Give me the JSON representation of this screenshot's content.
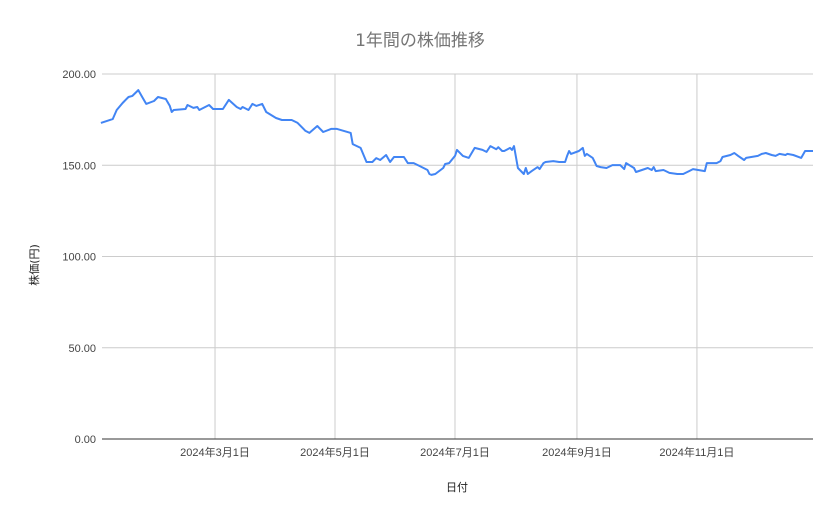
{
  "chart_data": {
    "type": "line",
    "title": "1年間の株価推移",
    "xlabel": "日付",
    "ylabel": "株価(円)",
    "ylim": [
      0,
      200
    ],
    "xlim": [
      "2024-01-01",
      "2024-12-31"
    ],
    "grid": true,
    "legend": "none",
    "line_color": "#4285f4",
    "y_ticks": [
      "0.00",
      "50.00",
      "100.00",
      "150.00",
      "200.00"
    ],
    "y_tick_values": [
      0,
      50,
      100,
      150,
      200
    ],
    "x_ticks": [
      {
        "date": "2024-03-01",
        "label": "2024年3月1日"
      },
      {
        "date": "2024-05-01",
        "label": "2024年5月1日"
      },
      {
        "date": "2024-07-01",
        "label": "2024年7月1日"
      },
      {
        "date": "2024-09-01",
        "label": "2024年9月1日"
      },
      {
        "date": "2024-11-01",
        "label": "2024年11月1日"
      }
    ],
    "series": [
      {
        "x": [
          "2024-01-03",
          "2024-01-09",
          "2024-01-11",
          "2024-01-14",
          "2024-01-17",
          "2024-01-19",
          "2024-01-22",
          "2024-01-24",
          "2024-01-26",
          "2024-01-30",
          "2024-02-01",
          "2024-02-05",
          "2024-02-07",
          "2024-02-08",
          "2024-02-09",
          "2024-02-15",
          "2024-02-16",
          "2024-02-19",
          "2024-02-21",
          "2024-02-22",
          "2024-02-27",
          "2024-02-29",
          "2024-03-05",
          "2024-03-08",
          "2024-03-12",
          "2024-03-14",
          "2024-03-15",
          "2024-03-18",
          "2024-03-20",
          "2024-03-22",
          "2024-03-25",
          "2024-03-27",
          "2024-04-01",
          "2024-04-04",
          "2024-04-09",
          "2024-04-12",
          "2024-04-16",
          "2024-04-18",
          "2024-04-22",
          "2024-04-25",
          "2024-04-29",
          "2024-05-02",
          "2024-05-09",
          "2024-05-10",
          "2024-05-14",
          "2024-05-17",
          "2024-05-20",
          "2024-05-22",
          "2024-05-24",
          "2024-05-27",
          "2024-05-29",
          "2024-05-31",
          "2024-06-05",
          "2024-06-07",
          "2024-06-10",
          "2024-06-13",
          "2024-06-17",
          "2024-06-18",
          "2024-06-19",
          "2024-06-21",
          "2024-06-25",
          "2024-06-26",
          "2024-06-28",
          "2024-07-01",
          "2024-07-02",
          "2024-07-05",
          "2024-07-08",
          "2024-07-11",
          "2024-07-15",
          "2024-07-17",
          "2024-07-19",
          "2024-07-22",
          "2024-07-23",
          "2024-07-25",
          "2024-07-26",
          "2024-07-29",
          "2024-07-30",
          "2024-07-31",
          "2024-08-02",
          "2024-08-05",
          "2024-08-06",
          "2024-08-07",
          "2024-08-09",
          "2024-08-12",
          "2024-08-13",
          "2024-08-15",
          "2024-08-16",
          "2024-08-20",
          "2024-08-23",
          "2024-08-26",
          "2024-08-27",
          "2024-08-28",
          "2024-08-29",
          "2024-09-02",
          "2024-09-04",
          "2024-09-05",
          "2024-09-06",
          "2024-09-09",
          "2024-09-10",
          "2024-09-11",
          "2024-09-13",
          "2024-09-16",
          "2024-09-19",
          "2024-09-23",
          "2024-09-25",
          "2024-09-26",
          "2024-09-30",
          "2024-10-01",
          "2024-10-04",
          "2024-10-07",
          "2024-10-09",
          "2024-10-10",
          "2024-10-11",
          "2024-10-15",
          "2024-10-18",
          "2024-10-22",
          "2024-10-25",
          "2024-10-28",
          "2024-10-30",
          "2024-11-05",
          "2024-11-06",
          "2024-11-11",
          "2024-11-13",
          "2024-11-14",
          "2024-11-18",
          "2024-11-20",
          "2024-11-22",
          "2024-11-25",
          "2024-11-26",
          "2024-12-02",
          "2024-12-04",
          "2024-12-06",
          "2024-12-09",
          "2024-12-11",
          "2024-12-13",
          "2024-12-16",
          "2024-12-17",
          "2024-12-20",
          "2024-12-24",
          "2024-12-26",
          "2024-12-30"
        ],
        "y": [
          173.2,
          175.3,
          180.3,
          184.1,
          187.4,
          188.0,
          191.2,
          187.4,
          183.6,
          185.2,
          187.4,
          186.3,
          182.5,
          179.2,
          180.3,
          180.8,
          183.0,
          181.4,
          181.9,
          180.3,
          183.0,
          180.8,
          180.8,
          185.8,
          181.9,
          180.8,
          181.9,
          180.3,
          183.6,
          182.5,
          183.6,
          179.2,
          175.9,
          174.8,
          174.8,
          173.2,
          168.8,
          167.7,
          171.5,
          168.2,
          169.9,
          169.9,
          167.7,
          161.6,
          159.5,
          151.8,
          151.8,
          153.9,
          152.9,
          155.6,
          151.8,
          154.5,
          154.5,
          151.2,
          151.2,
          149.6,
          147.4,
          145.2,
          144.7,
          145.2,
          148.5,
          150.7,
          151.2,
          155.1,
          158.4,
          155.1,
          154.0,
          159.5,
          158.4,
          157.3,
          160.5,
          158.8,
          159.9,
          157.8,
          157.8,
          159.5,
          158.4,
          160.5,
          148.5,
          145.2,
          148.5,
          145.2,
          146.8,
          149.0,
          147.9,
          151.2,
          151.8,
          152.3,
          151.8,
          151.8,
          155.1,
          157.8,
          156.2,
          157.8,
          159.5,
          155.1,
          156.2,
          154.0,
          151.8,
          149.6,
          149.0,
          148.5,
          150.1,
          150.1,
          147.9,
          151.2,
          148.5,
          146.3,
          147.4,
          148.5,
          147.4,
          149.0,
          146.8,
          147.4,
          145.8,
          145.2,
          145.2,
          146.8,
          147.9,
          146.8,
          151.2,
          151.2,
          152.3,
          154.5,
          155.6,
          156.7,
          155.1,
          152.9,
          154.0,
          155.1,
          156.2,
          156.7,
          155.6,
          155.1,
          156.2,
          155.6,
          156.2,
          155.6,
          154.0,
          157.8,
          157.8
        ]
      }
    ]
  }
}
